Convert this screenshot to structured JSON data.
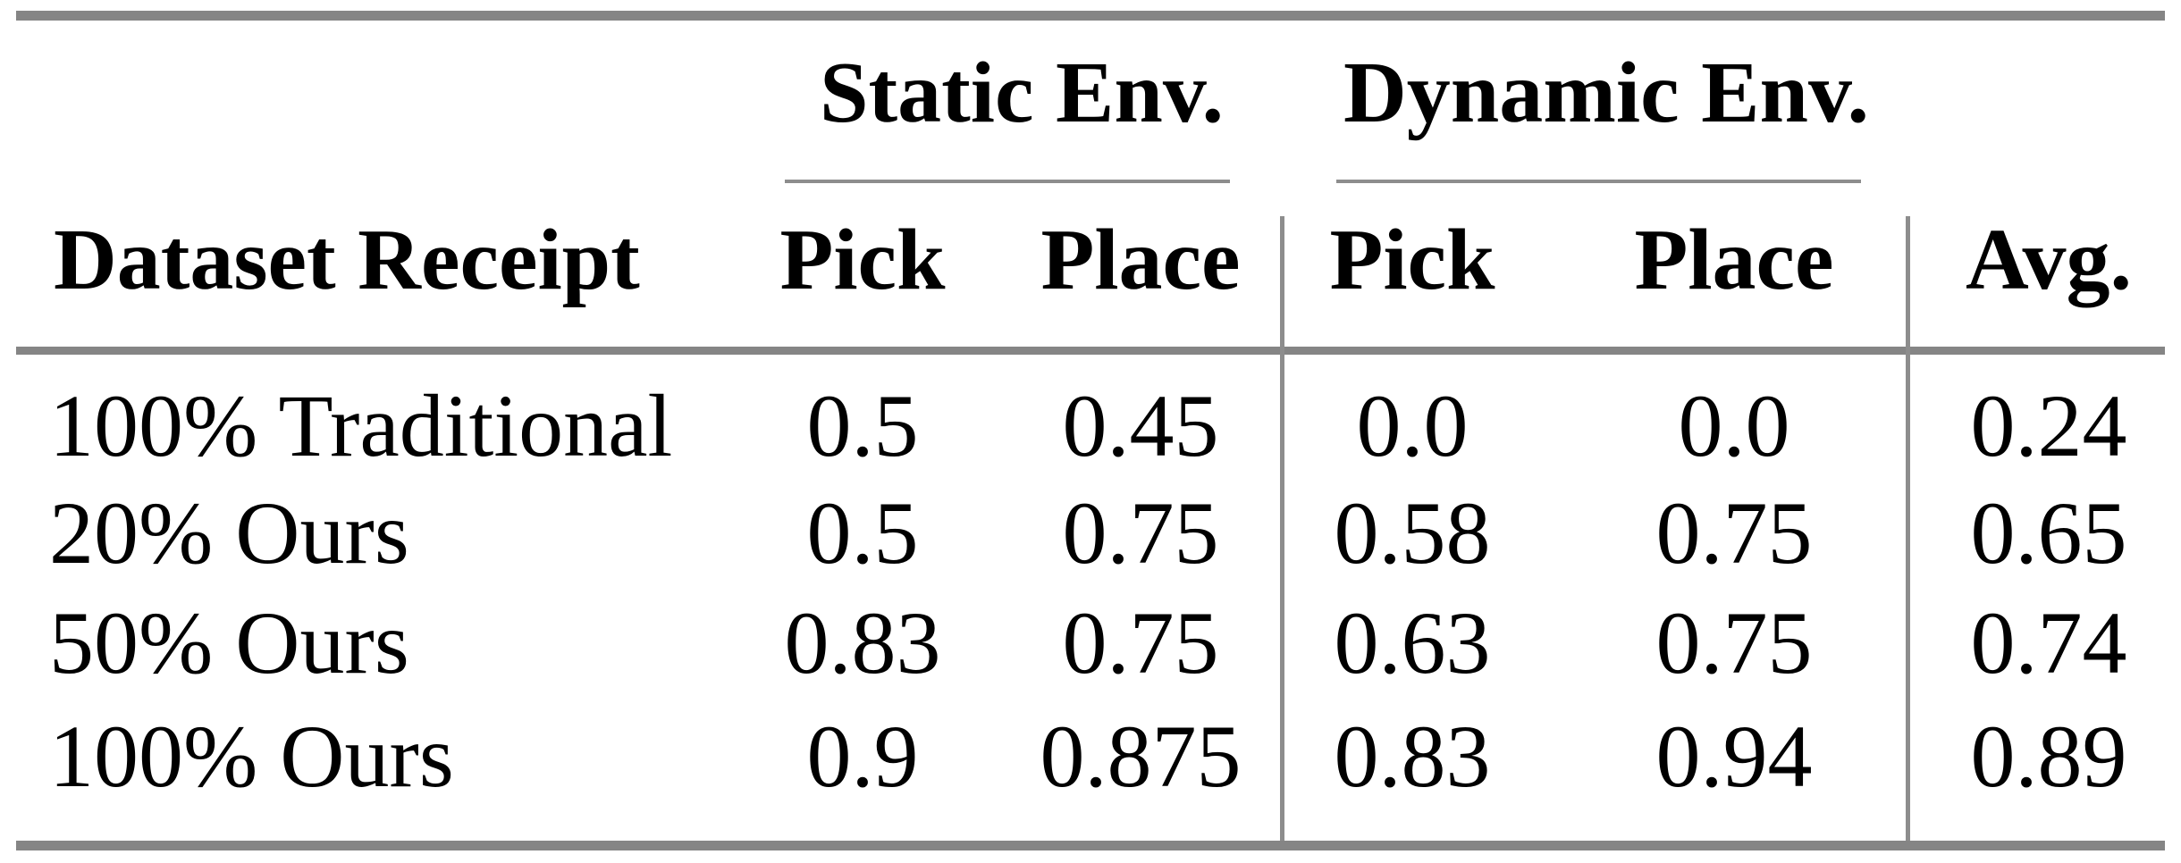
{
  "table": {
    "group_headers": [
      {
        "label": "Static Env."
      },
      {
        "label": "Dynamic Env."
      }
    ],
    "columns": [
      "Dataset Receipt",
      "Pick",
      "Place",
      "Pick",
      "Place",
      "Avg."
    ],
    "rows": [
      {
        "label": "100% Traditional",
        "values": [
          "0.5",
          "0.45",
          "0.0",
          "0.0",
          "0.24"
        ]
      },
      {
        "label": "20% Ours",
        "values": [
          "0.5",
          "0.75",
          "0.58",
          "0.75",
          "0.65"
        ]
      },
      {
        "label": "50% Ours",
        "values": [
          "0.83",
          "0.75",
          "0.63",
          "0.75",
          "0.74"
        ]
      },
      {
        "label": "100% Ours",
        "values": [
          "0.9",
          "0.875",
          "0.83",
          "0.94",
          "0.89"
        ]
      }
    ],
    "colors": {
      "rule_gray": "#858585",
      "thin_rule_gray": "#8d8d8d",
      "text": "#000000",
      "background": "#ffffff"
    }
  },
  "chart_data": {
    "type": "table",
    "group_headers": [
      "Static Env.",
      "Dynamic Env."
    ],
    "columns": [
      "Dataset Receipt",
      "Static Pick",
      "Static Place",
      "Dynamic Pick",
      "Dynamic Place",
      "Avg."
    ],
    "rows": [
      [
        "100% Traditional",
        0.5,
        0.45,
        0.0,
        0.0,
        0.24
      ],
      [
        "20% Ours",
        0.5,
        0.75,
        0.58,
        0.75,
        0.65
      ],
      [
        "50% Ours",
        0.83,
        0.75,
        0.63,
        0.75,
        0.74
      ],
      [
        "100% Ours",
        0.9,
        0.875,
        0.83,
        0.94,
        0.89
      ]
    ]
  }
}
